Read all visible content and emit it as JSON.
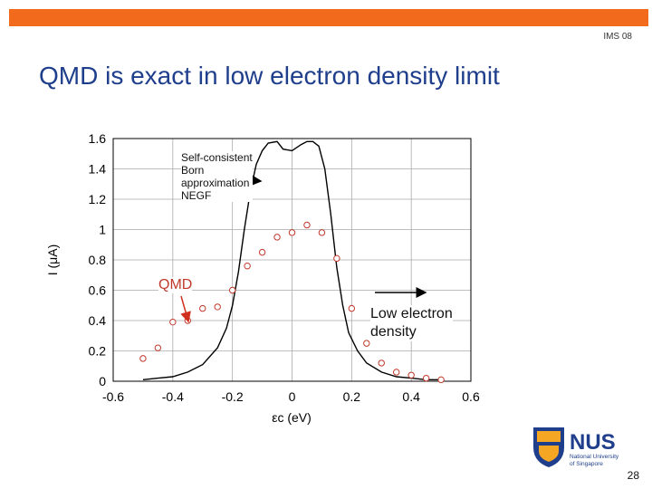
{
  "header": {
    "conference": "IMS 08"
  },
  "slide": {
    "title": "QMD is exact in low electron density limit",
    "page_number": "28"
  },
  "colors": {
    "accent_bar": "#f26b1d",
    "title": "#1f3f8c",
    "qmd_points": "#c0392b",
    "arrow_red": "#d0311e"
  },
  "annotations": {
    "scba_lines": [
      "Self-consistent",
      "Born",
      "approximation",
      "NEGF"
    ],
    "qmd": "QMD",
    "low_density_lines": [
      "Low electron",
      "density"
    ]
  },
  "logo": {
    "name": "NUS",
    "sub1": "National University",
    "sub2": "of Singapore"
  },
  "chart_data": {
    "type": "scatter",
    "xlabel": "εc (eV)",
    "ylabel": "I (μA)",
    "xlim": [
      -0.6,
      0.6
    ],
    "ylim": [
      0,
      1.6
    ],
    "xticks": [
      -0.6,
      -0.4,
      -0.2,
      0,
      0.2,
      0.4,
      0.6
    ],
    "yticks": [
      0,
      0.2,
      0.4,
      0.6,
      0.8,
      1,
      1.2,
      1.4,
      1.6
    ],
    "grid": true,
    "series": [
      {
        "style": "line",
        "x": [
          -0.5,
          -0.45,
          -0.4,
          -0.35,
          -0.3,
          -0.25,
          -0.22,
          -0.2,
          -0.18,
          -0.16,
          -0.14,
          -0.12,
          -0.1,
          -0.08,
          -0.05,
          -0.03,
          0,
          0.03,
          0.05,
          0.07,
          0.09,
          0.11,
          0.13,
          0.15,
          0.17,
          0.19,
          0.22,
          0.25,
          0.3,
          0.35,
          0.4,
          0.45,
          0.5
        ],
        "y": [
          0.01,
          0.02,
          0.03,
          0.06,
          0.11,
          0.22,
          0.35,
          0.5,
          0.72,
          1.0,
          1.25,
          1.43,
          1.52,
          1.57,
          1.58,
          1.53,
          1.52,
          1.56,
          1.58,
          1.58,
          1.55,
          1.4,
          1.1,
          0.75,
          0.5,
          0.32,
          0.2,
          0.12,
          0.06,
          0.03,
          0.02,
          0.01,
          0.01
        ]
      },
      {
        "style": "markers",
        "x": [
          -0.5,
          -0.45,
          -0.4,
          -0.35,
          -0.3,
          -0.25,
          -0.2,
          -0.15,
          -0.1,
          -0.05,
          0,
          0.05,
          0.1,
          0.15,
          0.2,
          0.25,
          0.3,
          0.35,
          0.4,
          0.45,
          0.5
        ],
        "y": [
          0.15,
          0.22,
          0.39,
          0.4,
          0.48,
          0.49,
          0.6,
          0.76,
          0.85,
          0.95,
          0.98,
          1.03,
          0.98,
          0.81,
          0.48,
          0.25,
          0.12,
          0.06,
          0.04,
          0.02,
          0.01
        ]
      }
    ]
  }
}
